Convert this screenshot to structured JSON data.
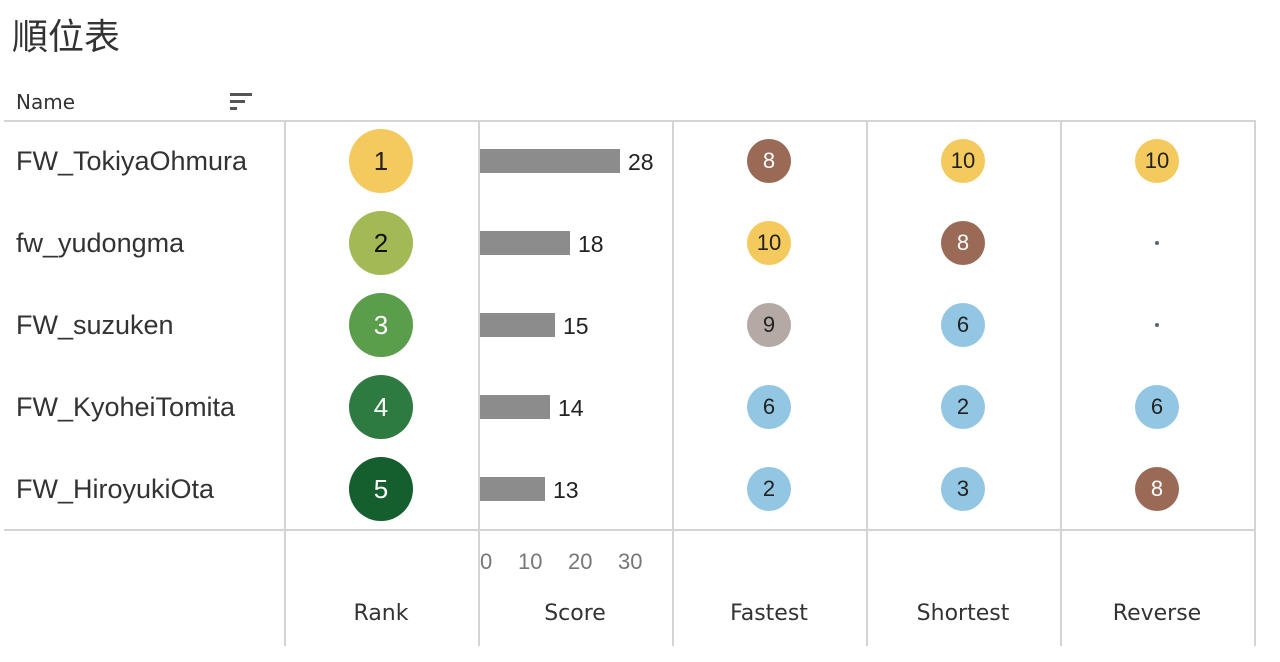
{
  "title": "順位表",
  "name_header": "Name",
  "columns": [
    "Rank",
    "Score",
    "Fastest",
    "Shortest",
    "Reverse"
  ],
  "score_axis": {
    "ticks": [
      "0",
      "10",
      "20",
      "30"
    ],
    "min": 0,
    "max": 30
  },
  "colors": {
    "rank": [
      "#f4c95d",
      "#a2b955",
      "#5a9e4c",
      "#2e7b42",
      "#155e2e"
    ],
    "bar": "#8c8c8c",
    "gold": "#f4c95d",
    "brown": "#9a6a57",
    "taupe": "#b4a9a4",
    "light_blue": "#93c6e3"
  },
  "rows": [
    {
      "name": "FW_TokiyaOhmura",
      "rank": "1",
      "score": "28",
      "fastest": "8",
      "shortest": "10",
      "reverse": "10"
    },
    {
      "name": "fw_yudongma",
      "rank": "2",
      "score": "18",
      "fastest": "10",
      "shortest": "8",
      "reverse": null
    },
    {
      "name": "FW_suzuken",
      "rank": "3",
      "score": "15",
      "fastest": "9",
      "shortest": "6",
      "reverse": null
    },
    {
      "name": "FW_KyoheiTomita",
      "rank": "4",
      "score": "14",
      "fastest": "6",
      "shortest": "2",
      "reverse": "6"
    },
    {
      "name": "FW_HiroyukiOta",
      "rank": "5",
      "score": "13",
      "fastest": "2",
      "shortest": "3",
      "reverse": "8"
    }
  ],
  "chart_data": {
    "type": "table",
    "title": "順位表",
    "row_header": "Name",
    "categories": [
      "FW_TokiyaOhmura",
      "fw_yudongma",
      "FW_suzuken",
      "FW_KyoheiTomita",
      "FW_HiroyukiOta"
    ],
    "series": [
      {
        "name": "Rank",
        "values": [
          1,
          2,
          3,
          4,
          5
        ]
      },
      {
        "name": "Score",
        "values": [
          28,
          18,
          15,
          14,
          13
        ]
      },
      {
        "name": "Fastest",
        "values": [
          8,
          10,
          9,
          6,
          2
        ]
      },
      {
        "name": "Shortest",
        "values": [
          10,
          8,
          6,
          2,
          3
        ]
      },
      {
        "name": "Reverse",
        "values": [
          10,
          null,
          null,
          6,
          8
        ]
      }
    ],
    "score_xlim": [
      0,
      30
    ],
    "legend": "none"
  }
}
